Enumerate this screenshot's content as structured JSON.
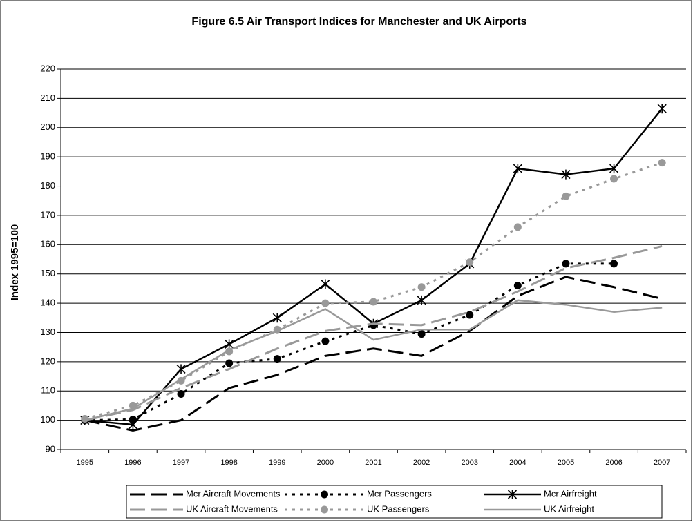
{
  "chart_data": {
    "type": "line",
    "title": "Figure 6.5 Air Transport Indices for Manchester and UK Airports",
    "y_label": "Index 1995=100",
    "categories": [
      "1995",
      "1996",
      "1997",
      "1998",
      "1999",
      "2000",
      "2001",
      "2002",
      "2003",
      "2004",
      "2005",
      "2006",
      "2007"
    ],
    "series": [
      {
        "name": "Mcr Aircraft Movements",
        "color": "#000000",
        "dash": "dash",
        "marker": "none",
        "values": [
          100,
          96.5,
          100,
          111,
          115.5,
          122,
          124.5,
          122,
          130.5,
          142.5,
          149,
          145.5,
          141.5
        ]
      },
      {
        "name": "Mcr Passengers",
        "color": "#000000",
        "dash": "dot",
        "marker": "circle",
        "values": [
          100,
          100.3,
          109,
          119.5,
          121,
          127,
          132.5,
          129.5,
          136,
          146,
          153.5,
          153.5,
          null
        ]
      },
      {
        "name": "Mcr Airfreight",
        "color": "#000000",
        "dash": "solid",
        "marker": "star",
        "values": [
          100,
          98.5,
          117.5,
          126,
          135,
          146.5,
          133,
          141,
          153.5,
          186,
          184,
          186,
          206.5
        ]
      },
      {
        "name": "UK Aircraft Movements",
        "color": "#999999",
        "dash": "dash",
        "marker": "none",
        "values": [
          100,
          103.5,
          111,
          117.5,
          124.5,
          130.5,
          133,
          132.5,
          137,
          144,
          152,
          155.5,
          159.5
        ]
      },
      {
        "name": "UK Passengers",
        "color": "#999999",
        "dash": "dot",
        "marker": "circle",
        "values": [
          100.5,
          105,
          113.5,
          123.5,
          131,
          140,
          140.5,
          145.5,
          154,
          166,
          176.5,
          182.5,
          188
        ]
      },
      {
        "name": "UK Airfreight",
        "color": "#999999",
        "dash": "solid",
        "marker": "none",
        "values": [
          100,
          104,
          114,
          124,
          130.5,
          138,
          127.5,
          131,
          131,
          141,
          139.5,
          137,
          138.5
        ]
      }
    ],
    "ylim": [
      90,
      220
    ],
    "yticks": [
      90,
      100,
      110,
      120,
      130,
      140,
      150,
      160,
      170,
      180,
      190,
      200,
      210,
      220
    ],
    "grid": true,
    "legend": "bottom"
  }
}
